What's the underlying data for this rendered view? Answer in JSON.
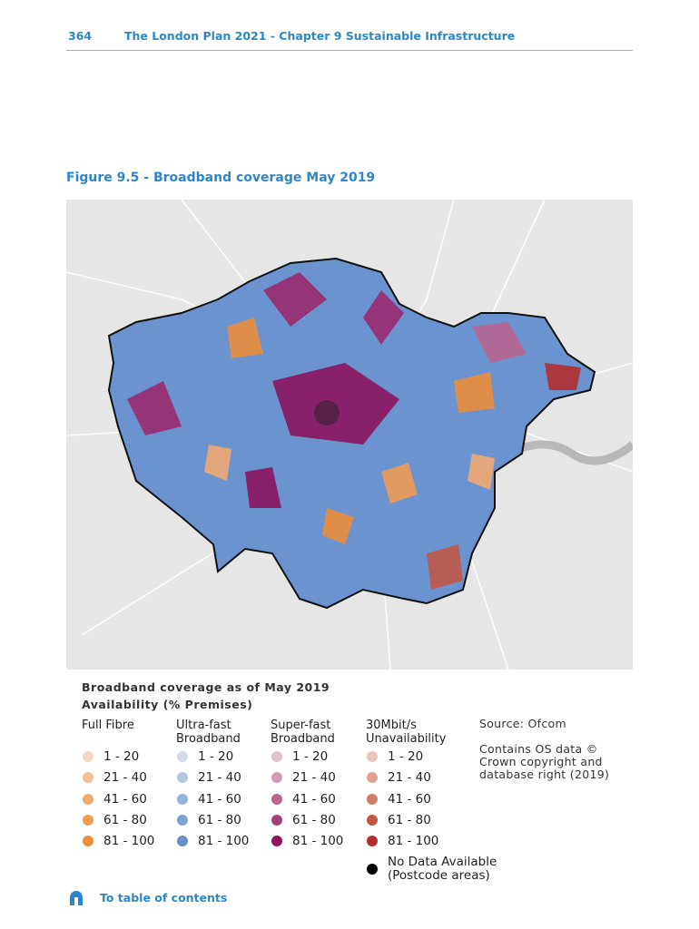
{
  "header": {
    "page_number": "364",
    "title": "The London Plan 2021 - Chapter 9 Sustainable Infrastructure"
  },
  "figure": {
    "title": "Figure 9.5 - Broadband coverage May 2019"
  },
  "legend": {
    "title": "Broadband coverage as of May 2019",
    "subtitle": "Availability (% Premises)",
    "columns": [
      {
        "header": "Full Fibre",
        "items": [
          {
            "label": "1 - 20",
            "color": "#f7d6c4"
          },
          {
            "label": "21 - 40",
            "color": "#f3bf98"
          },
          {
            "label": "41 - 60",
            "color": "#f0aa72"
          },
          {
            "label": "61 - 80",
            "color": "#ee9b57"
          },
          {
            "label": "81 - 100",
            "color": "#ec8e3c"
          }
        ]
      },
      {
        "header": "Ultra-fast Broadband",
        "items": [
          {
            "label": "1 - 20",
            "color": "#d4dbe6"
          },
          {
            "label": "21 - 40",
            "color": "#b5c6df"
          },
          {
            "label": "41 - 60",
            "color": "#98b2d9"
          },
          {
            "label": "61 - 80",
            "color": "#7ea1d3"
          },
          {
            "label": "81 - 100",
            "color": "#6590ca"
          }
        ]
      },
      {
        "header": "Super-fast Broadband",
        "items": [
          {
            "label": "1 - 20",
            "color": "#e2c1d1"
          },
          {
            "label": "21 - 40",
            "color": "#d39ab7"
          },
          {
            "label": "41 - 60",
            "color": "#b8648f"
          },
          {
            "label": "61 - 80",
            "color": "#a2437a"
          },
          {
            "label": "81 - 100",
            "color": "#8c155f"
          }
        ]
      },
      {
        "header": "30Mbit/s Unavailability",
        "items": [
          {
            "label": "1 - 20",
            "color": "#ecc4bb"
          },
          {
            "label": "21 - 40",
            "color": "#e0a193"
          },
          {
            "label": "41 - 60",
            "color": "#cf7d6b"
          },
          {
            "label": "61 - 80",
            "color": "#c05848"
          },
          {
            "label": "81 - 100",
            "color": "#b22f2f"
          }
        ]
      }
    ],
    "no_data": {
      "label": "No Data Available (Postcode areas)",
      "color": "#000000"
    }
  },
  "source": {
    "text": "Source: Ofcom",
    "copyright": "Contains OS data © Crown copyright and database right (2019)"
  },
  "footer": {
    "link": "To table of contents"
  }
}
